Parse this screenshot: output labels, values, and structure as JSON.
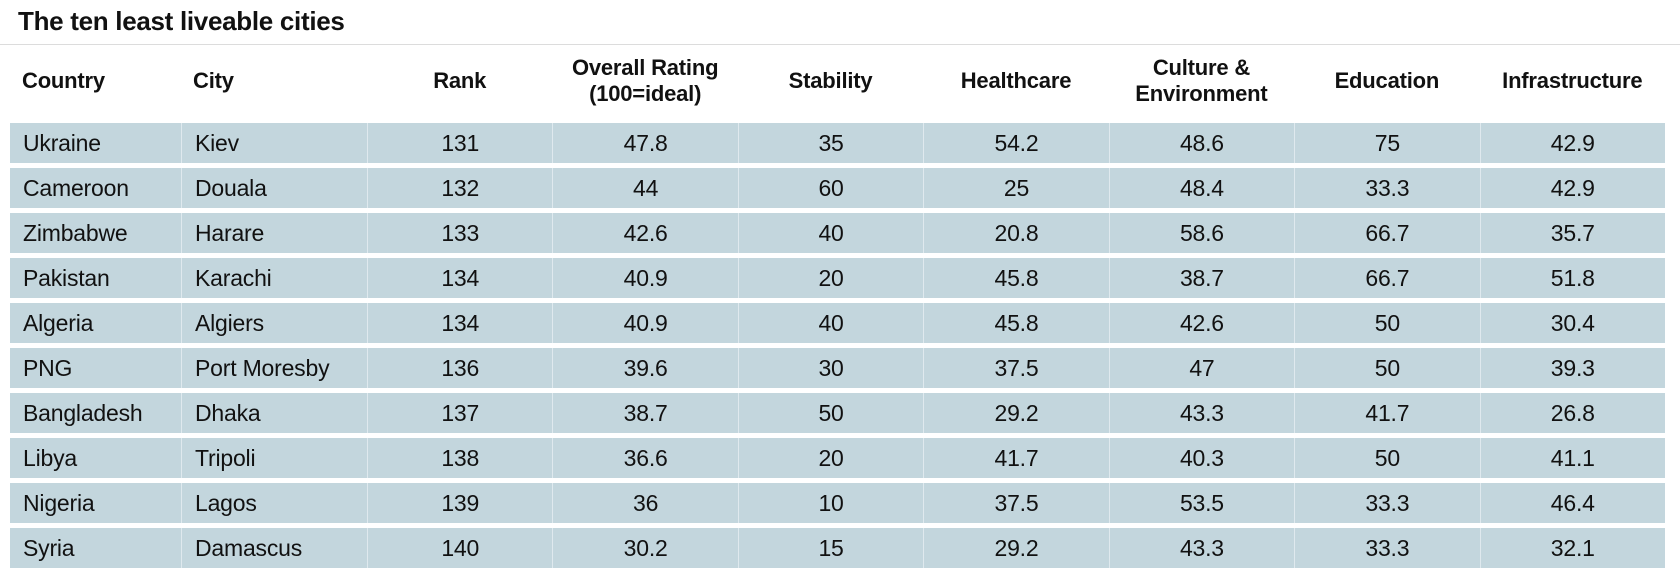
{
  "title": "The ten least liveable cities",
  "colors": {
    "background": "#ffffff",
    "text": "#111111",
    "row_fill": "#c3d6dd",
    "column_divider": "#dfe9ee",
    "title_rule": "#dcdcdc"
  },
  "header": {
    "columns": [
      {
        "name": "country",
        "lines": [
          "Country"
        ],
        "align": "left"
      },
      {
        "name": "city",
        "lines": [
          "City"
        ],
        "align": "left"
      },
      {
        "name": "rank",
        "lines": [
          "Rank"
        ],
        "align": "center"
      },
      {
        "name": "overall-rating",
        "lines": [
          "Overall Rating",
          "(100=ideal)"
        ],
        "align": "center"
      },
      {
        "name": "stability",
        "lines": [
          "Stability"
        ],
        "align": "center"
      },
      {
        "name": "healthcare",
        "lines": [
          "Healthcare"
        ],
        "align": "center"
      },
      {
        "name": "culture-environment",
        "lines": [
          "Culture &",
          "Environment"
        ],
        "align": "center"
      },
      {
        "name": "education",
        "lines": [
          "Education"
        ],
        "align": "center"
      },
      {
        "name": "infrastructure",
        "lines": [
          "Infrastructure"
        ],
        "align": "center"
      }
    ]
  },
  "chart_data": {
    "type": "table",
    "title": "The ten least liveable cities",
    "columns": [
      "Country",
      "City",
      "Rank",
      "Overall Rating (100=ideal)",
      "Stability",
      "Healthcare",
      "Culture & Environment",
      "Education",
      "Infrastructure"
    ],
    "rows": [
      [
        "Ukraine",
        "Kiev",
        "131",
        "47.8",
        "35",
        "54.2",
        "48.6",
        "75",
        "42.9"
      ],
      [
        "Cameroon",
        "Douala",
        "132",
        "44",
        "60",
        "25",
        "48.4",
        "33.3",
        "42.9"
      ],
      [
        "Zimbabwe",
        "Harare",
        "133",
        "42.6",
        "40",
        "20.8",
        "58.6",
        "66.7",
        "35.7"
      ],
      [
        "Pakistan",
        "Karachi",
        "134",
        "40.9",
        "20",
        "45.8",
        "38.7",
        "66.7",
        "51.8"
      ],
      [
        "Algeria",
        "Algiers",
        "134",
        "40.9",
        "40",
        "45.8",
        "42.6",
        "50",
        "30.4"
      ],
      [
        "PNG",
        "Port Moresby",
        "136",
        "39.6",
        "30",
        "37.5",
        "47",
        "50",
        "39.3"
      ],
      [
        "Bangladesh",
        "Dhaka",
        "137",
        "38.7",
        "50",
        "29.2",
        "43.3",
        "41.7",
        "26.8"
      ],
      [
        "Libya",
        "Tripoli",
        "138",
        "36.6",
        "20",
        "41.7",
        "40.3",
        "50",
        "41.1"
      ],
      [
        "Nigeria",
        "Lagos",
        "139",
        "36",
        "10",
        "37.5",
        "53.5",
        "33.3",
        "46.4"
      ],
      [
        "Syria",
        "Damascus",
        "140",
        "30.2",
        "15",
        "29.2",
        "43.3",
        "33.3",
        "32.1"
      ]
    ]
  }
}
